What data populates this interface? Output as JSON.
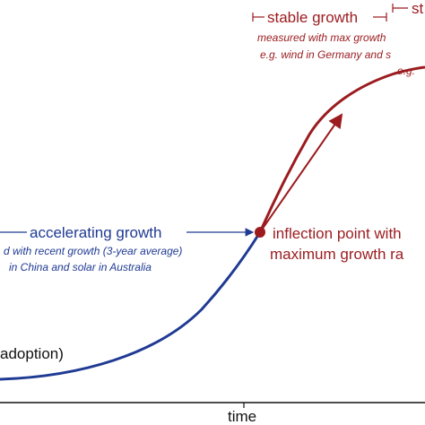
{
  "colors": {
    "blue": "#1f3a93",
    "red": "#9b1b1f",
    "black": "#111111"
  },
  "axis": {
    "x_label": "time"
  },
  "phases": {
    "early": {
      "label": "adoption)"
    },
    "accelerating": {
      "label": "accelerating growth",
      "note_line1": "d with recent growth (3-year average)",
      "note_line2": "in China and solar in Australia"
    },
    "inflection": {
      "label_line1": "inflection point with",
      "label_line2": "maximum growth ra"
    },
    "stable": {
      "label": "stable growth",
      "note_line1": "measured with max growth",
      "note_line2": "e.g. wind in Germany and s",
      "note_line3": "e.g."
    },
    "next": {
      "label": "st"
    }
  }
}
